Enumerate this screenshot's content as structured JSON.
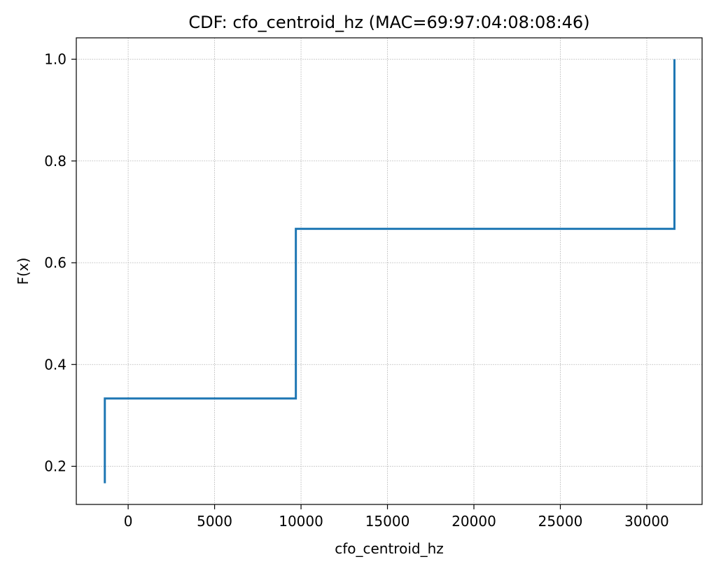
{
  "chart_data": {
    "type": "line",
    "drawstyle": "steps-post",
    "title": "CDF: cfo_centroid_hz (MAC=69:97:04:08:08:46)",
    "xlabel": "cfo_centroid_hz",
    "ylabel": "F(x)",
    "xlim": [
      -3000,
      33200
    ],
    "ylim": [
      0.125,
      1.042
    ],
    "x_ticks": [
      0,
      5000,
      10000,
      15000,
      20000,
      25000,
      30000
    ],
    "y_ticks": [
      0.2,
      0.4,
      0.6,
      0.8,
      1.0
    ],
    "x_tick_labels": [
      "0",
      "5000",
      "10000",
      "15000",
      "20000",
      "25000",
      "30000"
    ],
    "y_tick_labels": [
      "0.2",
      "0.4",
      "0.6",
      "0.8",
      "1.0"
    ],
    "grid": true,
    "series": [
      {
        "color": "#1f77b4",
        "x": [
          -1350,
          -1350,
          9700,
          9700,
          31600,
          31600
        ],
        "y": [
          0.1667,
          0.3333,
          0.3333,
          0.6667,
          0.6667,
          1.0
        ]
      }
    ]
  }
}
